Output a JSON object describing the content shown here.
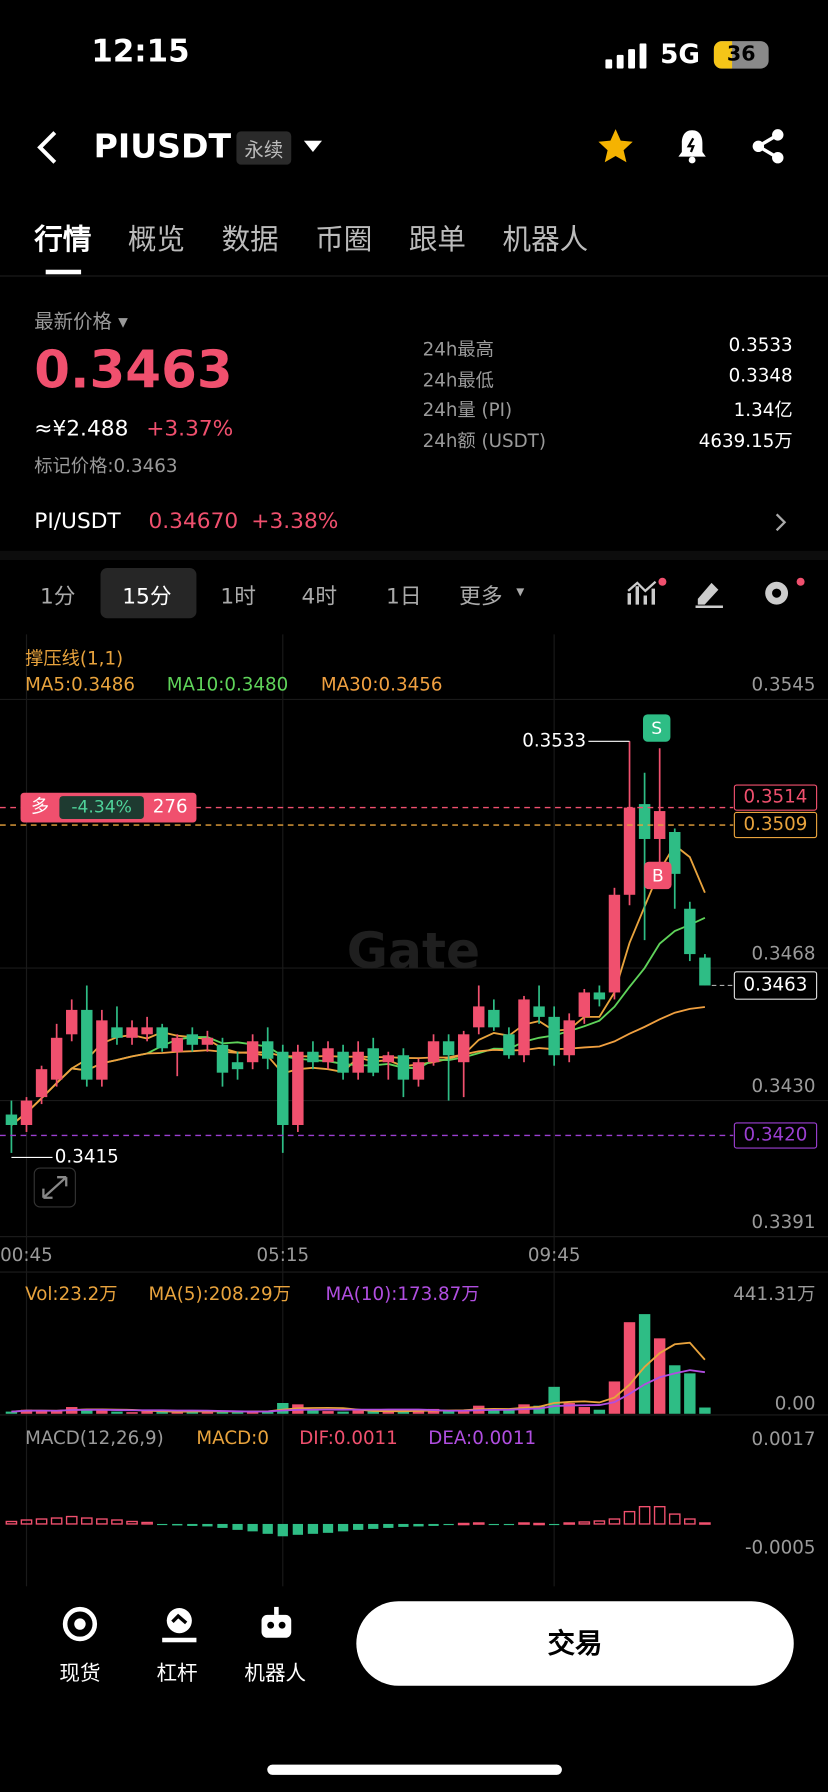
{
  "status_bar": {
    "time": "12:15",
    "network": "5G",
    "battery": "36"
  },
  "header": {
    "symbol": "PIUSDT",
    "tag": "永续"
  },
  "tabs": [
    "行情",
    "概览",
    "数据",
    "币圈",
    "跟单",
    "机器人"
  ],
  "price": {
    "label": "最新价格",
    "last": "0.3463",
    "cny": "≈¥2.488",
    "change": "+3.37%",
    "mark_label": "标记价格:",
    "mark": "0.3463"
  },
  "stats": [
    {
      "label": "24h最高",
      "value": "0.3533"
    },
    {
      "label": "24h最低",
      "value": "0.3348"
    },
    {
      "label": "24h量 (PI)",
      "value": "1.34亿"
    },
    {
      "label": "24h额 (USDT)",
      "value": "4639.15万"
    }
  ],
  "spot": {
    "pair": "PI/USDT",
    "price": "0.34670",
    "change": "+3.38%"
  },
  "intervals": [
    "1分",
    "15分",
    "1时",
    "4时",
    "1日",
    "更多"
  ],
  "chart_data": {
    "type": "candlestick",
    "indicator_label": "撑压线(1,1)",
    "ma_labels": [
      "MA5:0.3486",
      "MA10:0.3480",
      "MA30:0.3456"
    ],
    "ma_colors": [
      "#e8a33d",
      "#5fd35a",
      "#f0a040"
    ],
    "watermark": "Gate",
    "up_color": "#f0506e",
    "down_color": "#2ebd85",
    "ylim": [
      0.3391,
      0.3545
    ],
    "yticks": [
      0.3545,
      0.3468,
      {
        "value": 0.343,
        "label": "0.3430"
      },
      0.3391
    ],
    "categories": [
      null,
      "00:45",
      null,
      null,
      null,
      null,
      null,
      null,
      null,
      null,
      null,
      null,
      null,
      null,
      null,
      null,
      null,
      null,
      "05:15",
      null,
      null,
      null,
      null,
      null,
      null,
      null,
      null,
      null,
      null,
      null,
      null,
      null,
      null,
      null,
      null,
      null,
      "09:45",
      null,
      null,
      null,
      null,
      null,
      null,
      null,
      null,
      null,
      null
    ],
    "candles": [
      [
        0.3426,
        0.343,
        0.3415,
        0.3423
      ],
      [
        0.3423,
        0.3431,
        0.3421,
        0.343
      ],
      [
        0.3431,
        0.344,
        0.3429,
        0.3439
      ],
      [
        0.3436,
        0.3452,
        0.3434,
        0.3448
      ],
      [
        0.3449,
        0.3459,
        0.3447,
        0.3456
      ],
      [
        0.3456,
        0.3463,
        0.3434,
        0.3436
      ],
      [
        0.3436,
        0.3456,
        0.3434,
        0.3453
      ],
      [
        0.3451,
        0.3457,
        0.3446,
        0.3448
      ],
      [
        0.3448,
        0.3453,
        0.3446,
        0.3451
      ],
      [
        0.3449,
        0.3454,
        0.3447,
        0.3451
      ],
      [
        0.3451,
        0.3452,
        0.3444,
        0.3445
      ],
      [
        0.3444,
        0.3449,
        0.3437,
        0.3448
      ],
      [
        0.3449,
        0.3451,
        0.3444,
        0.3446
      ],
      [
        0.3446,
        0.345,
        0.3444,
        0.3448
      ],
      [
        0.3446,
        0.3448,
        0.3434,
        0.3438
      ],
      [
        0.3441,
        0.3444,
        0.3436,
        0.3439
      ],
      [
        0.3441,
        0.3449,
        0.3439,
        0.3447
      ],
      [
        0.3447,
        0.3451,
        0.3439,
        0.3442
      ],
      [
        0.3444,
        0.3446,
        0.3415,
        0.3423
      ],
      [
        0.3423,
        0.3446,
        0.3421,
        0.3444
      ],
      [
        0.3444,
        0.3447,
        0.3439,
        0.3441
      ],
      [
        0.3441,
        0.3447,
        0.3439,
        0.3445
      ],
      [
        0.3444,
        0.3446,
        0.3436,
        0.3438
      ],
      [
        0.3438,
        0.3447,
        0.3436,
        0.3444
      ],
      [
        0.3445,
        0.3448,
        0.3437,
        0.3438
      ],
      [
        0.3441,
        0.3444,
        0.3436,
        0.3443
      ],
      [
        0.3443,
        0.3445,
        0.3431,
        0.3436
      ],
      [
        0.3436,
        0.3442,
        0.3434,
        0.3441
      ],
      [
        0.3441,
        0.3449,
        0.344,
        0.3447
      ],
      [
        0.3447,
        0.3449,
        0.343,
        0.3443
      ],
      [
        0.3441,
        0.345,
        0.3431,
        0.3449
      ],
      [
        0.3451,
        0.3463,
        0.3449,
        0.3457
      ],
      [
        0.3456,
        0.3459,
        0.345,
        0.3451
      ],
      [
        0.3449,
        0.3451,
        0.3442,
        0.3443
      ],
      [
        0.3443,
        0.346,
        0.3441,
        0.3459
      ],
      [
        0.3457,
        0.3463,
        0.3452,
        0.3454
      ],
      [
        0.3454,
        0.3457,
        0.344,
        0.3443
      ],
      [
        0.3443,
        0.3455,
        0.3441,
        0.3453
      ],
      [
        0.3454,
        0.3462,
        0.3452,
        0.3461
      ],
      [
        0.3461,
        0.3463,
        0.3457,
        0.3459
      ],
      [
        0.3461,
        0.3491,
        0.3459,
        0.3489
      ],
      [
        0.3489,
        0.3533,
        0.3486,
        0.3514
      ],
      [
        0.3515,
        0.3524,
        0.3476,
        0.3505
      ],
      [
        0.3505,
        0.3531,
        0.3498,
        0.3513
      ],
      [
        0.3507,
        0.3508,
        0.3485,
        0.3495
      ],
      [
        0.3485,
        0.3487,
        0.347,
        0.3472
      ],
      [
        0.3471,
        0.3472,
        0.3463,
        0.3463
      ]
    ],
    "high_marker": 0.3533,
    "low_marker": 0.3415,
    "sell_marker": "S",
    "buy_marker": "B",
    "price_lines": [
      {
        "value": 0.3509,
        "color": "#e8a33d"
      },
      {
        "value": 0.3514,
        "color": "#f0506e"
      },
      {
        "value": 0.342,
        "label": "0.3420",
        "color": "#9b3fd1"
      }
    ],
    "last_price": 0.3463,
    "position": {
      "side": "多",
      "pnl": "-4.34%",
      "size": "276"
    },
    "volume": {
      "labels": [
        "Vol:23.2万",
        "MA(5):208.29万",
        "MA(10):173.87万"
      ],
      "label_colors": [
        "#e8a33d",
        "#e8a33d",
        "#b04ee0"
      ],
      "ylim": [
        0,
        441.31
      ],
      "yticks": [
        {
          "value": 441.31,
          "label": "441.31万"
        },
        {
          "value": 0,
          "label": "0.00"
        }
      ],
      "values": [
        8,
        15,
        12,
        10,
        25,
        18,
        15,
        8,
        6,
        10,
        8,
        7,
        12,
        8,
        10,
        6,
        8,
        12,
        40,
        35,
        12,
        10,
        8,
        12,
        10,
        8,
        10,
        14,
        18,
        10,
        12,
        30,
        20,
        15,
        35,
        30,
        100,
        40,
        25,
        15,
        120,
        340,
        370,
        280,
        180,
        150,
        23.2
      ]
    },
    "macd": {
      "labels": [
        "MACD(12,26,9)",
        "MACD:0",
        "DIF:0.0011",
        "DEA:0.0011"
      ],
      "label_colors": [
        "#9a9a9a",
        "#e8a33d",
        "#f0506e",
        "#b04ee0"
      ],
      "ylim": [
        -0.0005,
        0.0017
      ],
      "yticks": [
        0.0017,
        -0.0005
      ],
      "values": [
        5e-05,
        8e-05,
        0.0001,
        0.00012,
        0.00015,
        0.00012,
        0.0001,
        8e-05,
        5e-05,
        3e-05,
        -2e-05,
        -3e-05,
        -4e-05,
        -5e-05,
        -8e-05,
        -0.00012,
        -0.00015,
        -0.0002,
        -0.00025,
        -0.00022,
        -0.0002,
        -0.00018,
        -0.00015,
        -0.00012,
        -0.0001,
        -8e-05,
        -6e-05,
        -5e-05,
        -4e-05,
        -2e-05,
        1e-05,
        2e-05,
        -1e-05,
        -2e-05,
        2e-05,
        1e-05,
        -1e-05,
        2e-05,
        4e-05,
        6e-05,
        0.0001,
        0.00025,
        0.00035,
        0.00035,
        0.0002,
        0.0001,
        2e-05
      ]
    }
  },
  "bottom_nav": [
    "现货",
    "杠杆",
    "机器人"
  ],
  "trade_button": "交易"
}
